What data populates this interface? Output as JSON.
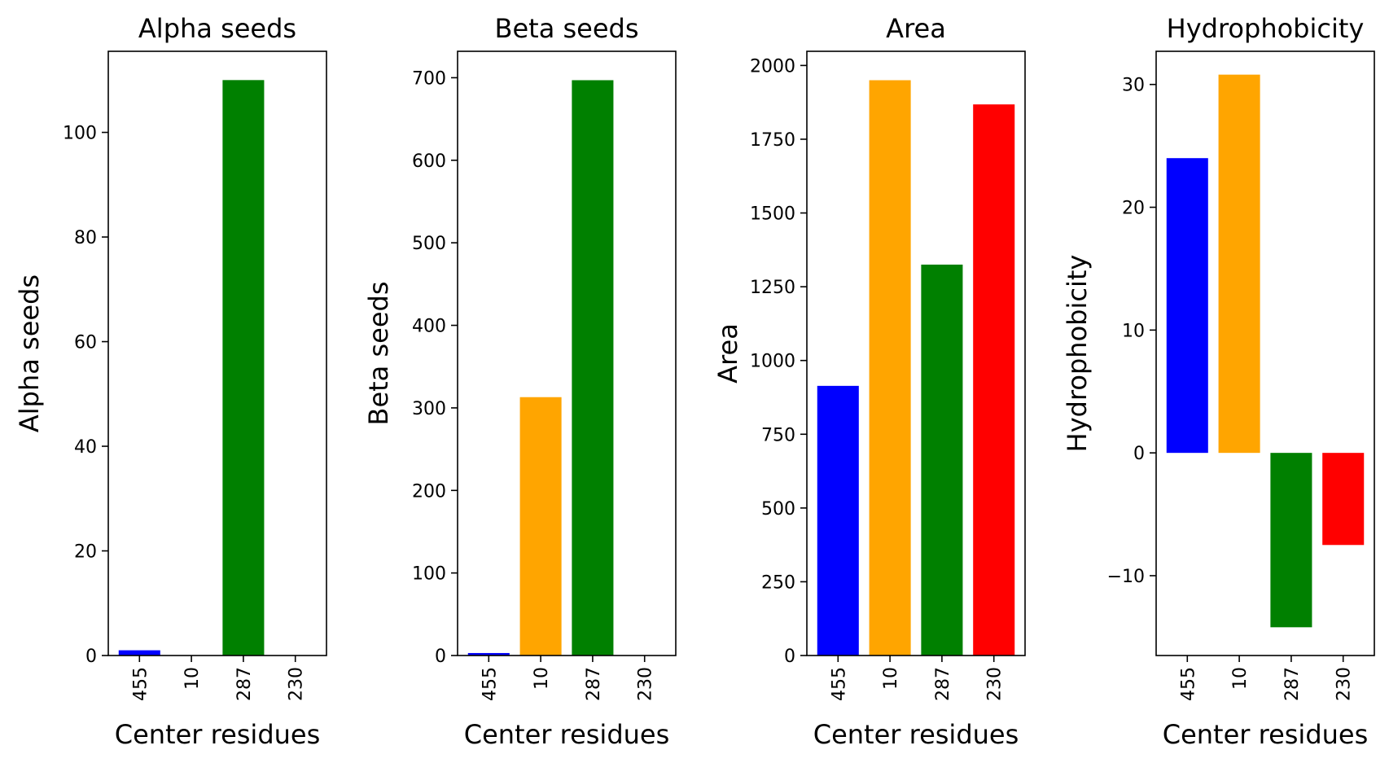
{
  "chart_data": [
    {
      "type": "bar",
      "title": "Alpha seeds",
      "xlabel": "Center residues",
      "ylabel": "Alpha seeds",
      "categories": [
        "455",
        "10",
        "287",
        "230"
      ],
      "values": [
        1,
        0,
        110,
        0
      ],
      "colors": [
        "#0000ff",
        "#ffa500",
        "#008000",
        "#ff0000"
      ],
      "ylim": [
        0,
        115.5
      ],
      "yticks": [
        0,
        20,
        40,
        60,
        80,
        100
      ],
      "ytick_labels": [
        "0",
        "20",
        "40",
        "60",
        "80",
        "100"
      ],
      "grid": false
    },
    {
      "type": "bar",
      "title": "Beta seeds",
      "xlabel": "Center residues",
      "ylabel": "Beta seeds",
      "categories": [
        "455",
        "10",
        "287",
        "230"
      ],
      "values": [
        3,
        313,
        697,
        0
      ],
      "colors": [
        "#0000ff",
        "#ffa500",
        "#008000",
        "#ff0000"
      ],
      "ylim": [
        0,
        732
      ],
      "yticks": [
        0,
        100,
        200,
        300,
        400,
        500,
        600,
        700
      ],
      "ytick_labels": [
        "0",
        "100",
        "200",
        "300",
        "400",
        "500",
        "600",
        "700"
      ],
      "grid": false
    },
    {
      "type": "bar",
      "title": "Area",
      "xlabel": "Center residues",
      "ylabel": "Area",
      "categories": [
        "455",
        "10",
        "287",
        "230"
      ],
      "values": [
        914,
        1950,
        1325,
        1868
      ],
      "colors": [
        "#0000ff",
        "#ffa500",
        "#008000",
        "#ff0000"
      ],
      "ylim": [
        0,
        2048
      ],
      "yticks": [
        0,
        250,
        500,
        750,
        1000,
        1250,
        1500,
        1750,
        2000
      ],
      "ytick_labels": [
        "0",
        "250",
        "500",
        "750",
        "1000",
        "1250",
        "1500",
        "1750",
        "2000"
      ],
      "grid": false
    },
    {
      "type": "bar",
      "title": "Hydrophobicity",
      "xlabel": "Center residues",
      "ylabel": "Hydrophobicity",
      "categories": [
        "455",
        "10",
        "287",
        "230"
      ],
      "values": [
        24.0,
        30.8,
        -14.2,
        -7.5
      ],
      "colors": [
        "#0000ff",
        "#ffa500",
        "#008000",
        "#ff0000"
      ],
      "ylim": [
        -16.5,
        32.7
      ],
      "yticks": [
        -10,
        0,
        10,
        20,
        30
      ],
      "ytick_labels": [
        "−10",
        "0",
        "10",
        "20",
        "30"
      ],
      "grid": false
    }
  ]
}
